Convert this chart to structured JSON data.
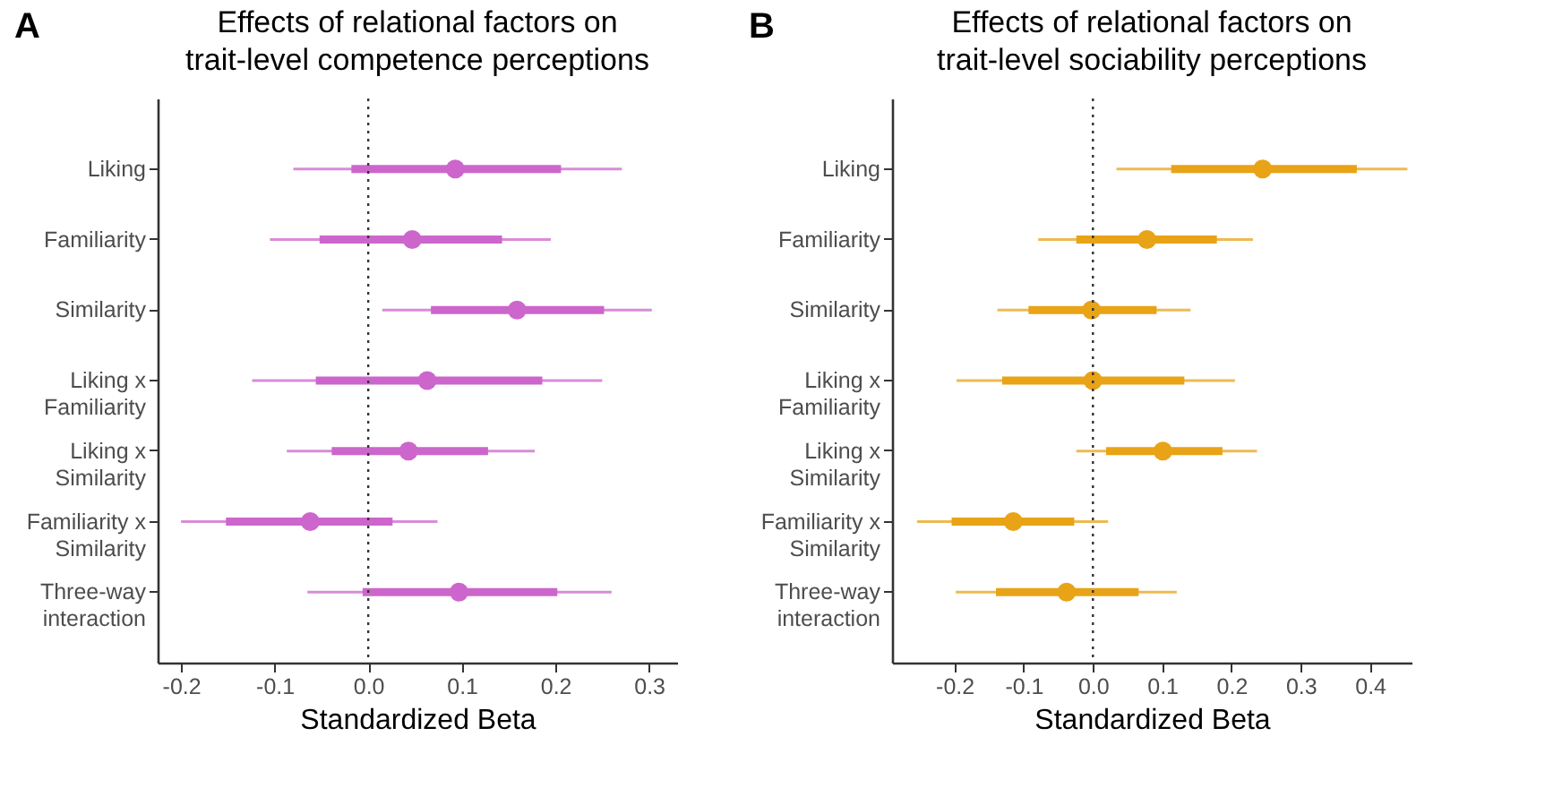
{
  "chart_data": [
    {
      "type": "box",
      "orientation": "horizontal",
      "title": "Effects of relational factors on\ntrait-level competence perceptions",
      "xlabel": "Standardized Beta",
      "annotations": [
        "A"
      ],
      "categories": [
        "Liking",
        "Familiarity",
        "Similarity",
        "Liking x\nFamiliarity",
        "Liking x\nSimilarity",
        "Familiarity x\nSimilarity",
        "Three-way\ninteraction"
      ],
      "xlim": [
        -0.225,
        0.33
      ],
      "xticks": [
        -0.2,
        -0.1,
        {
          "value": 0,
          "label": "0.0"
        },
        0.1,
        0.2,
        0.3
      ],
      "grid": false,
      "ref_lines": [
        {
          "axis": "x",
          "value": 0,
          "line_style": "dotted",
          "color": "#333333"
        }
      ],
      "series": [
        {
          "color": "#cc66cc",
          "boxes": [
            {
              "low": -0.08,
              "q1": -0.018,
              "median": 0.093,
              "q3": 0.206,
              "high": 0.271
            },
            {
              "low": -0.105,
              "q1": -0.052,
              "median": 0.047,
              "q3": 0.143,
              "high": 0.195
            },
            {
              "low": 0.015,
              "q1": 0.067,
              "median": 0.159,
              "q3": 0.252,
              "high": 0.303
            },
            {
              "low": -0.124,
              "q1": -0.056,
              "median": 0.063,
              "q3": 0.186,
              "high": 0.25
            },
            {
              "low": -0.087,
              "q1": -0.039,
              "median": 0.043,
              "q3": 0.128,
              "high": 0.178
            },
            {
              "low": -0.2,
              "q1": -0.152,
              "median": -0.062,
              "q3": 0.026,
              "high": 0.074
            },
            {
              "low": -0.065,
              "q1": -0.006,
              "median": 0.097,
              "q3": 0.202,
              "high": 0.26
            }
          ]
        }
      ]
    },
    {
      "type": "box",
      "orientation": "horizontal",
      "title": "Effects of relational factors on\ntrait-level sociability perceptions",
      "xlabel": "Standardized Beta",
      "annotations": [
        "B"
      ],
      "categories": [
        "Liking",
        "Familiarity",
        "Similarity",
        "Liking x\nFamiliarity",
        "Liking x\nSimilarity",
        "Familiarity x\nSimilarity",
        "Three-way\ninteraction"
      ],
      "xlim": [
        -0.29,
        0.46
      ],
      "xticks": [
        -0.2,
        -0.1,
        {
          "value": 0,
          "label": "0.0"
        },
        0.1,
        0.2,
        0.3,
        0.4
      ],
      "grid": false,
      "ref_lines": [
        {
          "axis": "x",
          "value": 0,
          "line_style": "dotted",
          "color": "#333333"
        }
      ],
      "series": [
        {
          "color": "#e8a317",
          "boxes": [
            {
              "low": 0.034,
              "q1": 0.113,
              "median": 0.245,
              "q3": 0.381,
              "high": 0.454
            },
            {
              "low": -0.079,
              "q1": -0.024,
              "median": 0.078,
              "q3": 0.179,
              "high": 0.231
            },
            {
              "low": -0.138,
              "q1": -0.093,
              "median": -0.002,
              "q3": 0.092,
              "high": 0.141
            },
            {
              "low": -0.197,
              "q1": -0.131,
              "median": 0.0,
              "q3": 0.132,
              "high": 0.205
            },
            {
              "low": -0.024,
              "q1": 0.019,
              "median": 0.101,
              "q3": 0.187,
              "high": 0.237
            },
            {
              "low": -0.254,
              "q1": -0.204,
              "median": -0.115,
              "q3": -0.027,
              "high": 0.022
            },
            {
              "low": -0.198,
              "q1": -0.14,
              "median": -0.038,
              "q3": 0.066,
              "high": 0.121
            }
          ]
        }
      ]
    }
  ]
}
